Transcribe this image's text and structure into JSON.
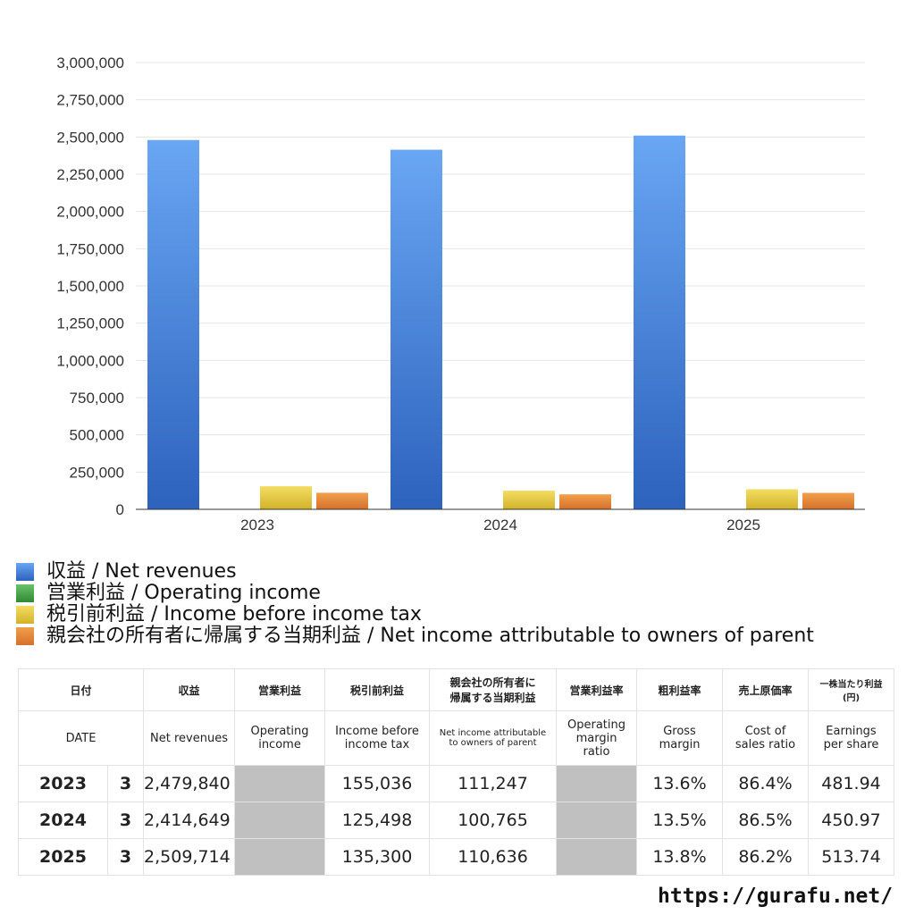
{
  "chart_data": {
    "type": "bar",
    "categories": [
      "2023",
      "2024",
      "2025"
    ],
    "series": [
      {
        "name": "収益 / Net revenues",
        "color": "#4a86df",
        "values": [
          2479840,
          2414649,
          2509714
        ]
      },
      {
        "name": "営業利益 / Operating income",
        "color": "#4aa04a",
        "values": [
          null,
          null,
          null
        ]
      },
      {
        "name": "税引前利益 / Income before income tax",
        "color": "#e8c93a",
        "values": [
          155036,
          125498,
          135300
        ]
      },
      {
        "name": "親会社の所有者に帰属する当期利益 / Net income attributable to owners of parent",
        "color": "#e4883a",
        "values": [
          111247,
          100765,
          110636
        ]
      }
    ],
    "ylim": [
      0,
      3000000
    ],
    "yticks": [
      "0",
      "250,000",
      "500,000",
      "750,000",
      "1,000,000",
      "1,250,000",
      "1,500,000",
      "1,750,000",
      "2,000,000",
      "2,250,000",
      "2,500,000",
      "2,750,000",
      "3,000,000"
    ],
    "ytick_values": [
      0,
      250000,
      500000,
      750000,
      1000000,
      1250000,
      1500000,
      1750000,
      2000000,
      2250000,
      2500000,
      2750000,
      3000000
    ],
    "grid": true,
    "legend_placement": "bottom"
  },
  "legend": [
    {
      "label": "収益 / Net revenues",
      "color": "#4a86df"
    },
    {
      "label": "営業利益 / Operating income",
      "color": "#4aa04a"
    },
    {
      "label": "税引前利益 / Income before income tax",
      "color": "#e8c93a"
    },
    {
      "label": "親会社の所有者に帰属する当期利益 / Net income attributable to owners of parent",
      "color": "#e4883a"
    }
  ],
  "table": {
    "headers_jp": {
      "date": "日付",
      "revenues": "収益",
      "operating_income": "営業利益",
      "pretax": "税引前利益",
      "net_income_1": "親会社の所有者に",
      "net_income_2": "帰属する当期利益",
      "op_margin": "営業利益率",
      "gross_margin": "粗利益率",
      "cost_ratio": "売上原価率",
      "eps_1": "一株当たり利益",
      "eps_2": "(円)"
    },
    "headers_en": {
      "date": "DATE",
      "revenues": "Net revenues",
      "operating_income_1": "Operating",
      "operating_income_2": "income",
      "pretax_1": "Income before",
      "pretax_2": "income tax",
      "net_income_1": "Net income attributable",
      "net_income_2": "to owners of parent",
      "op_margin_1": "Operating",
      "op_margin_2": "margin",
      "op_margin_3": "ratio",
      "gross_margin_1": "Gross",
      "gross_margin_2": "margin",
      "cost_ratio_1": "Cost of",
      "cost_ratio_2": "sales ratio",
      "eps_1": "Earnings",
      "eps_2": "per share"
    },
    "rows": [
      {
        "year": "2023",
        "month": "3",
        "revenues": "2,479,840",
        "operating_income": "",
        "pretax": "155,036",
        "net_income": "111,247",
        "op_margin": "",
        "gross_margin": "13.6%",
        "cost_ratio": "86.4%",
        "eps": "481.94"
      },
      {
        "year": "2024",
        "month": "3",
        "revenues": "2,414,649",
        "operating_income": "",
        "pretax": "125,498",
        "net_income": "100,765",
        "op_margin": "",
        "gross_margin": "13.5%",
        "cost_ratio": "86.5%",
        "eps": "450.97"
      },
      {
        "year": "2025",
        "month": "3",
        "revenues": "2,509,714",
        "operating_income": "",
        "pretax": "135,300",
        "net_income": "110,636",
        "op_margin": "",
        "gross_margin": "13.8%",
        "cost_ratio": "86.2%",
        "eps": "513.74"
      }
    ]
  },
  "source": "https://gurafu.net/"
}
